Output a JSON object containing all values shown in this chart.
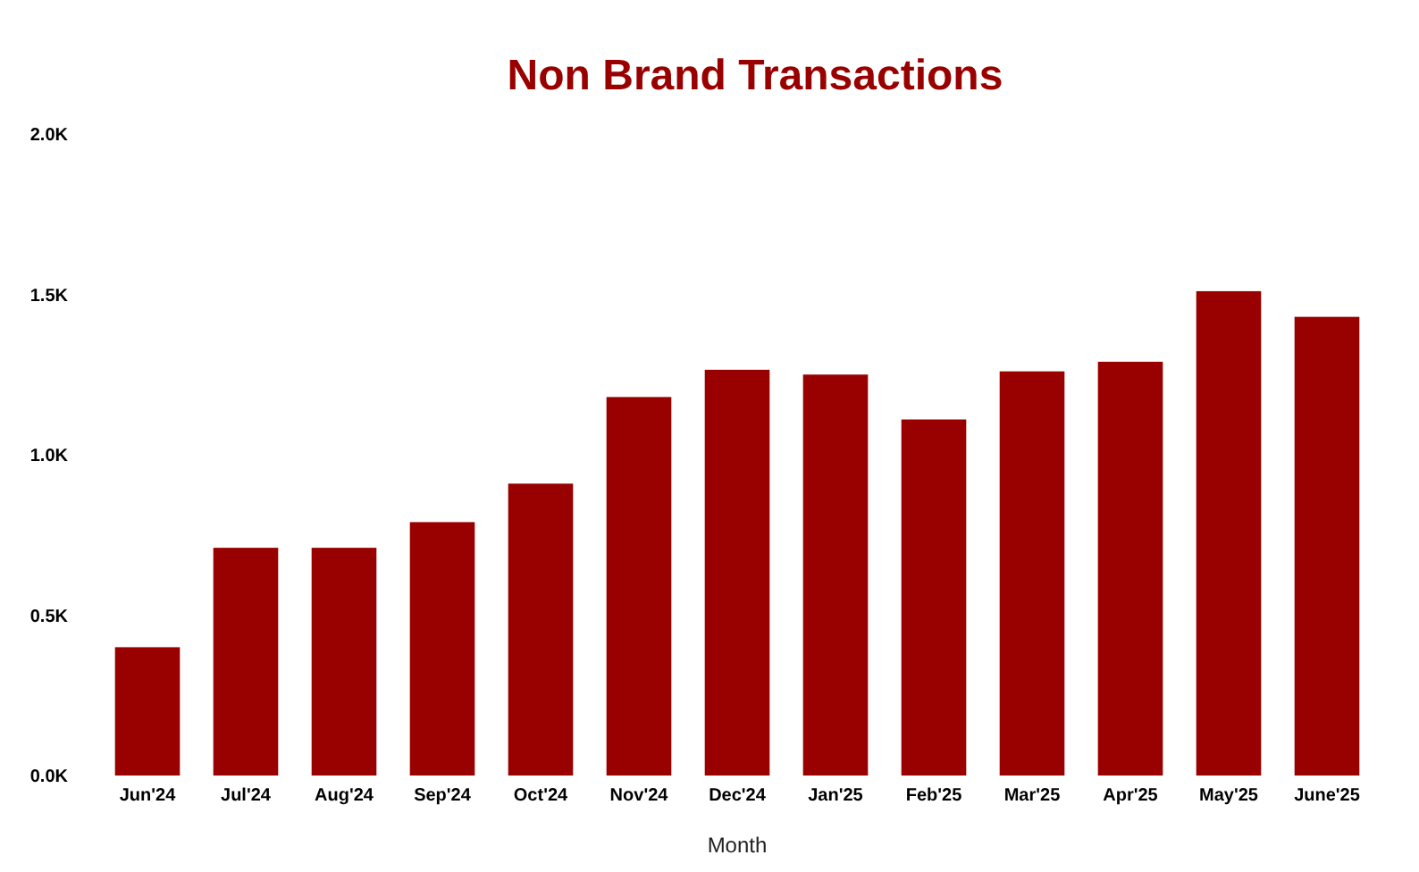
{
  "chart_data": {
    "type": "bar",
    "title": "Non Brand Transactions",
    "xlabel": "Month",
    "categories": [
      "Jun'24",
      "Jul'24",
      "Aug'24",
      "Sep'24",
      "Oct'24",
      "Nov'24",
      "Dec'24",
      "Jan'25",
      "Feb'25",
      "Mar'25",
      "Apr'25",
      "May'25",
      "June'25"
    ],
    "values": [
      400,
      710,
      710,
      790,
      910,
      1180,
      1265,
      1250,
      1110,
      1260,
      1290,
      1510,
      1430
    ],
    "color": "#990000",
    "ylim": [
      0,
      2000
    ],
    "yticks": [
      {
        "value": 0,
        "label": "0.0K"
      },
      {
        "value": 500,
        "label": "0.5K"
      },
      {
        "value": 1000,
        "label": "1.0K"
      },
      {
        "value": 1500,
        "label": "1.5K"
      },
      {
        "value": 2000,
        "label": "2.0K"
      }
    ]
  }
}
